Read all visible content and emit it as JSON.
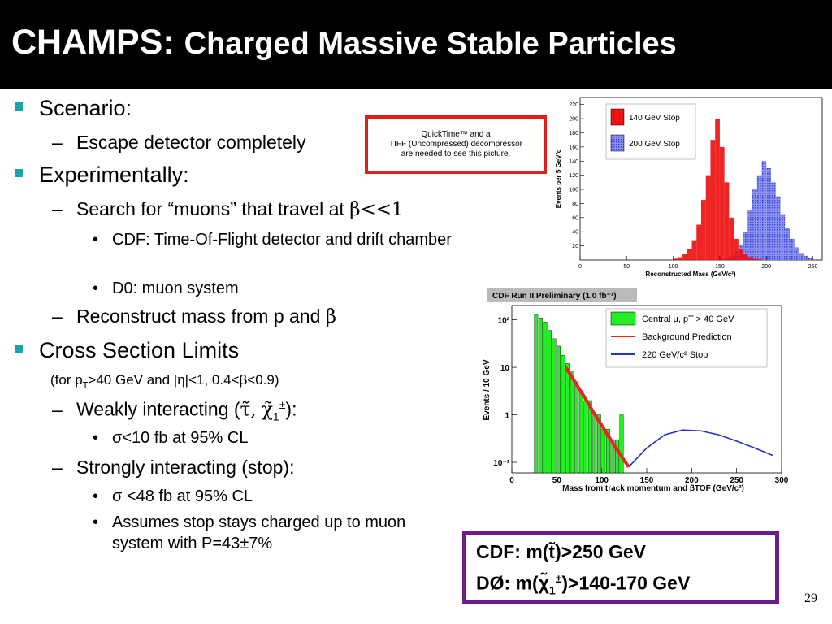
{
  "slide": {
    "title_part1": "CHAMPS:",
    "title_part2": "Charged Massive Stable Particles",
    "page_number": "29"
  },
  "bullets": {
    "scenario": "Scenario:",
    "escape": "Escape detector completely",
    "experimentally": "Experimentally:",
    "search_prefix": "Search for “muons” that travel at ",
    "search_symbol": "β<<1",
    "cdf_tof": "CDF: Time-Of-Flight detector and drift chamber",
    "d0_muon": "D0: muon system",
    "reconstruct_prefix": "Reconstruct mass from p and ",
    "reconstruct_symbol": "β",
    "cross_section": "Cross Section Limits",
    "note": "(for pT>40 GeV and |η|<1, 0.4<β<0.9)",
    "note_pre": "(for p",
    "note_sub": "T",
    "note_post": ">40 GeV and |η|<1, 0.4<β<0.9)",
    "weak_prefix": "Weakly interacting (",
    "weak_tau": "τ̃,",
    "weak_chi": "χ̃",
    "weak_chi_sub": "1",
    "weak_chi_sup": "±",
    "weak_suffix": "):",
    "weak_limit": "σ<10 fb at 95% CL",
    "strong": "Strongly interacting (stop):",
    "strong_limit": "σ <48 fb at 95% CL",
    "assumes": "Assumes stop stays charged up to muon system with P=43±7%"
  },
  "quicktime": {
    "line1": "QuickTime™ and a",
    "line2": "TIFF (Uncompressed) decompressor",
    "line3": "are needed to see this picture."
  },
  "results": {
    "cdf_label": "CDF: m(t̃)>250 GeV",
    "d0_prefix": "DØ:   m(χ̃",
    "d0_sub": "1",
    "d0_sup": "±",
    "d0_suffix": ")>140-170 GeV"
  },
  "chart_data": [
    {
      "type": "bar",
      "xlabel": "Reconstructed Mass (GeV/c²)",
      "ylabel": "Events per 5 GeV/c",
      "xlim": [
        0,
        260
      ],
      "ylim": [
        0,
        230
      ],
      "xticks": [
        "0",
        "50",
        "100",
        "150",
        "200",
        "250"
      ],
      "yticks": [
        "20",
        "40",
        "60",
        "80",
        "100",
        "120",
        "140",
        "160",
        "180",
        "200",
        "220"
      ],
      "legend_placement": "top-right",
      "series": [
        {
          "name": "140 GeV Stop",
          "color": "#ee1111",
          "x": [
            100,
            105,
            110,
            115,
            120,
            125,
            130,
            135,
            140,
            145,
            150,
            155,
            160,
            165,
            170,
            175,
            180,
            185,
            190
          ],
          "values": [
            2,
            4,
            8,
            15,
            28,
            50,
            85,
            120,
            170,
            200,
            160,
            110,
            60,
            30,
            15,
            8,
            4,
            2,
            1
          ]
        },
        {
          "name": "200 GeV Stop",
          "color": "#5560e6",
          "x": [
            150,
            155,
            160,
            165,
            170,
            175,
            180,
            185,
            190,
            195,
            200,
            205,
            210,
            215,
            220,
            225,
            230,
            235,
            240,
            245,
            250
          ],
          "values": [
            1,
            3,
            6,
            12,
            22,
            40,
            70,
            100,
            120,
            140,
            130,
            110,
            90,
            65,
            45,
            30,
            18,
            10,
            6,
            3,
            1
          ]
        }
      ]
    },
    {
      "type": "bar",
      "title": "CDF Run II Preliminary (1.0 fb⁻¹)",
      "xlabel": "Mass from track momentum and βTOF (GeV/c²)",
      "ylabel": "Events / 10 GeV",
      "ylog": true,
      "xlim": [
        0,
        300
      ],
      "ylim": [
        0.06,
        200
      ],
      "xticks": [
        "0",
        "50",
        "100",
        "150",
        "200",
        "250",
        "300"
      ],
      "yticks": [
        "10²",
        "10",
        "1",
        "10⁻¹"
      ],
      "legend_placement": "top-right",
      "series": [
        {
          "name": "Central μ, pT > 40 GeV",
          "color": "#22ee22",
          "x": [
            25,
            30,
            35,
            40,
            45,
            50,
            55,
            60,
            65,
            70,
            75,
            80,
            85,
            90,
            95,
            100,
            105,
            110,
            115,
            120
          ],
          "values": [
            130,
            110,
            90,
            60,
            40,
            28,
            18,
            12,
            8,
            5,
            3,
            2,
            2,
            1,
            1,
            0.5,
            0.5,
            0.3,
            0.3,
            1
          ]
        },
        {
          "name": "Background Prediction",
          "color": "#ee2222",
          "x": [
            60,
            70,
            80,
            90,
            100,
            110,
            120,
            130
          ],
          "values": [
            10,
            5,
            2.5,
            1.2,
            0.6,
            0.3,
            0.15,
            0.08
          ]
        },
        {
          "name": "220 GeV/c² Stop",
          "color": "#2233cc",
          "x": [
            130,
            150,
            170,
            190,
            210,
            230,
            250,
            270,
            290
          ],
          "values": [
            0.08,
            0.2,
            0.38,
            0.48,
            0.46,
            0.38,
            0.28,
            0.2,
            0.14
          ]
        }
      ]
    }
  ]
}
